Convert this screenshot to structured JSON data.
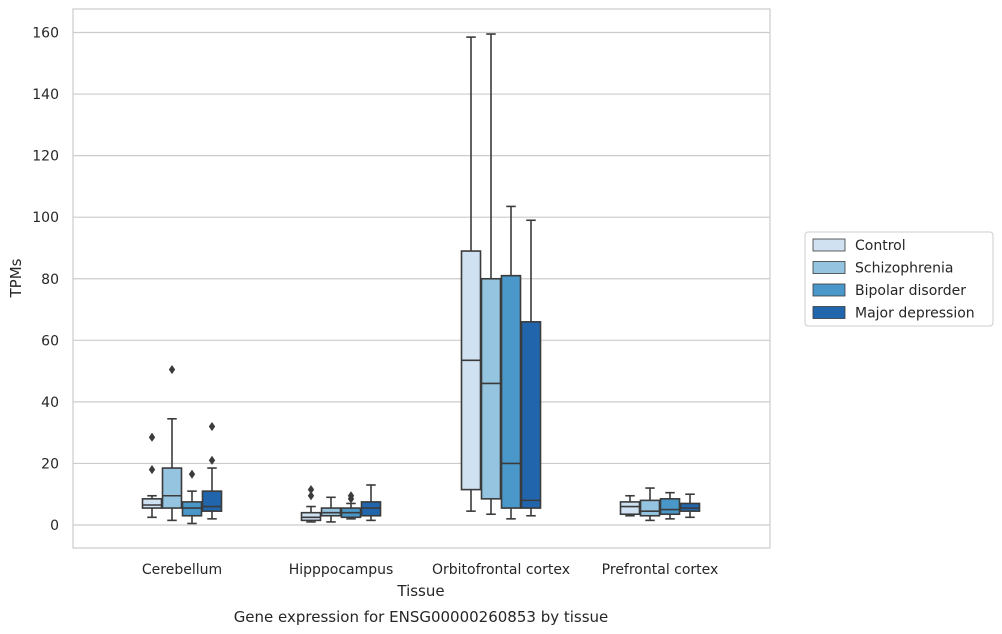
{
  "chart_data": {
    "type": "box",
    "title": "",
    "caption": "Gene expression for ENSG00000260853 by tissue",
    "xlabel": "Tissue",
    "ylabel": "TPMs",
    "ylim": [
      -7,
      167
    ],
    "yticks": [
      0,
      20,
      40,
      60,
      80,
      100,
      120,
      140,
      160
    ],
    "grid": true,
    "legend_position": "right",
    "categories": [
      "Cerebellum",
      "Hipppocampus",
      "Orbitofrontal cortex",
      "Prefrontal cortex"
    ],
    "series": [
      {
        "name": "Control",
        "color": "#d0e1f2",
        "boxes": [
          {
            "whisker_low": 2.5,
            "q1": 5.5,
            "median": 6.5,
            "q3": 8.5,
            "whisker_high": 9.5,
            "outliers": [
              18,
              28.5
            ]
          },
          {
            "whisker_low": 1,
            "q1": 1.5,
            "median": 2.5,
            "q3": 4,
            "whisker_high": 6,
            "outliers": [
              9.5,
              11.5
            ]
          },
          {
            "whisker_low": 4.5,
            "q1": 11.5,
            "median": 53.5,
            "q3": 89,
            "whisker_high": 158.5,
            "outliers": []
          },
          {
            "whisker_low": 3,
            "q1": 3.5,
            "median": 6,
            "q3": 7.5,
            "whisker_high": 9.5,
            "outliers": []
          }
        ]
      },
      {
        "name": "Schizophrenia",
        "color": "#94c4df",
        "boxes": [
          {
            "whisker_low": 1.5,
            "q1": 5.5,
            "median": 9.5,
            "q3": 18.5,
            "whisker_high": 34.5,
            "outliers": [
              50.5
            ]
          },
          {
            "whisker_low": 1,
            "q1": 3,
            "median": 4,
            "q3": 5.5,
            "whisker_high": 9,
            "outliers": []
          },
          {
            "whisker_low": 3.5,
            "q1": 8.5,
            "median": 46,
            "q3": 80,
            "whisker_high": 159.5,
            "outliers": []
          },
          {
            "whisker_low": 1.5,
            "q1": 3,
            "median": 4.5,
            "q3": 8,
            "whisker_high": 12,
            "outliers": []
          }
        ]
      },
      {
        "name": "Bipolar disorder",
        "color": "#4a98c9",
        "boxes": [
          {
            "whisker_low": 0.5,
            "q1": 3,
            "median": 5.5,
            "q3": 7.5,
            "whisker_high": 11,
            "outliers": [
              16.5
            ]
          },
          {
            "whisker_low": 2,
            "q1": 2.5,
            "median": 4,
            "q3": 5.5,
            "whisker_high": 7,
            "outliers": [
              8.5,
              9.5
            ]
          },
          {
            "whisker_low": 2,
            "q1": 5.5,
            "median": 20,
            "q3": 81,
            "whisker_high": 103.5,
            "outliers": []
          },
          {
            "whisker_low": 2,
            "q1": 3.5,
            "median": 5,
            "q3": 8.5,
            "whisker_high": 10.5,
            "outliers": []
          }
        ]
      },
      {
        "name": "Major depression",
        "color": "#2166ac",
        "boxes": [
          {
            "whisker_low": 2,
            "q1": 4.5,
            "median": 6,
            "q3": 11,
            "whisker_high": 18.5,
            "outliers": [
              21,
              32
            ]
          },
          {
            "whisker_low": 1.5,
            "q1": 3,
            "median": 5.5,
            "q3": 7.5,
            "whisker_high": 13,
            "outliers": []
          },
          {
            "whisker_low": 3,
            "q1": 5.5,
            "median": 8,
            "q3": 66,
            "whisker_high": 99,
            "outliers": []
          },
          {
            "whisker_low": 2.5,
            "q1": 4.5,
            "median": 5.5,
            "q3": 7,
            "whisker_high": 10,
            "outliers": []
          }
        ]
      }
    ]
  }
}
